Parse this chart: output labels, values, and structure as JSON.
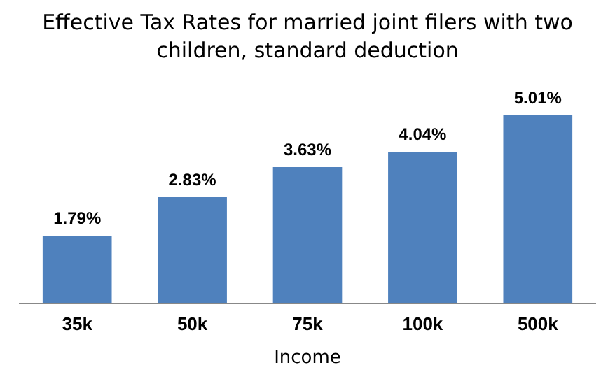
{
  "chart_data": {
    "type": "bar",
    "title": "Effective Tax Rates for married joint filers with two children, standard deduction",
    "xlabel": "Income",
    "categories": [
      "35k",
      "50k",
      "75k",
      "100k",
      "500k"
    ],
    "values": [
      1.79,
      2.83,
      3.63,
      4.04,
      5.01
    ],
    "value_labels": [
      "1.79%",
      "2.83%",
      "3.63%",
      "4.04%",
      "5.01%"
    ],
    "color": "#4f81bd",
    "grid": false,
    "legend": false,
    "tick_labels": "x"
  }
}
